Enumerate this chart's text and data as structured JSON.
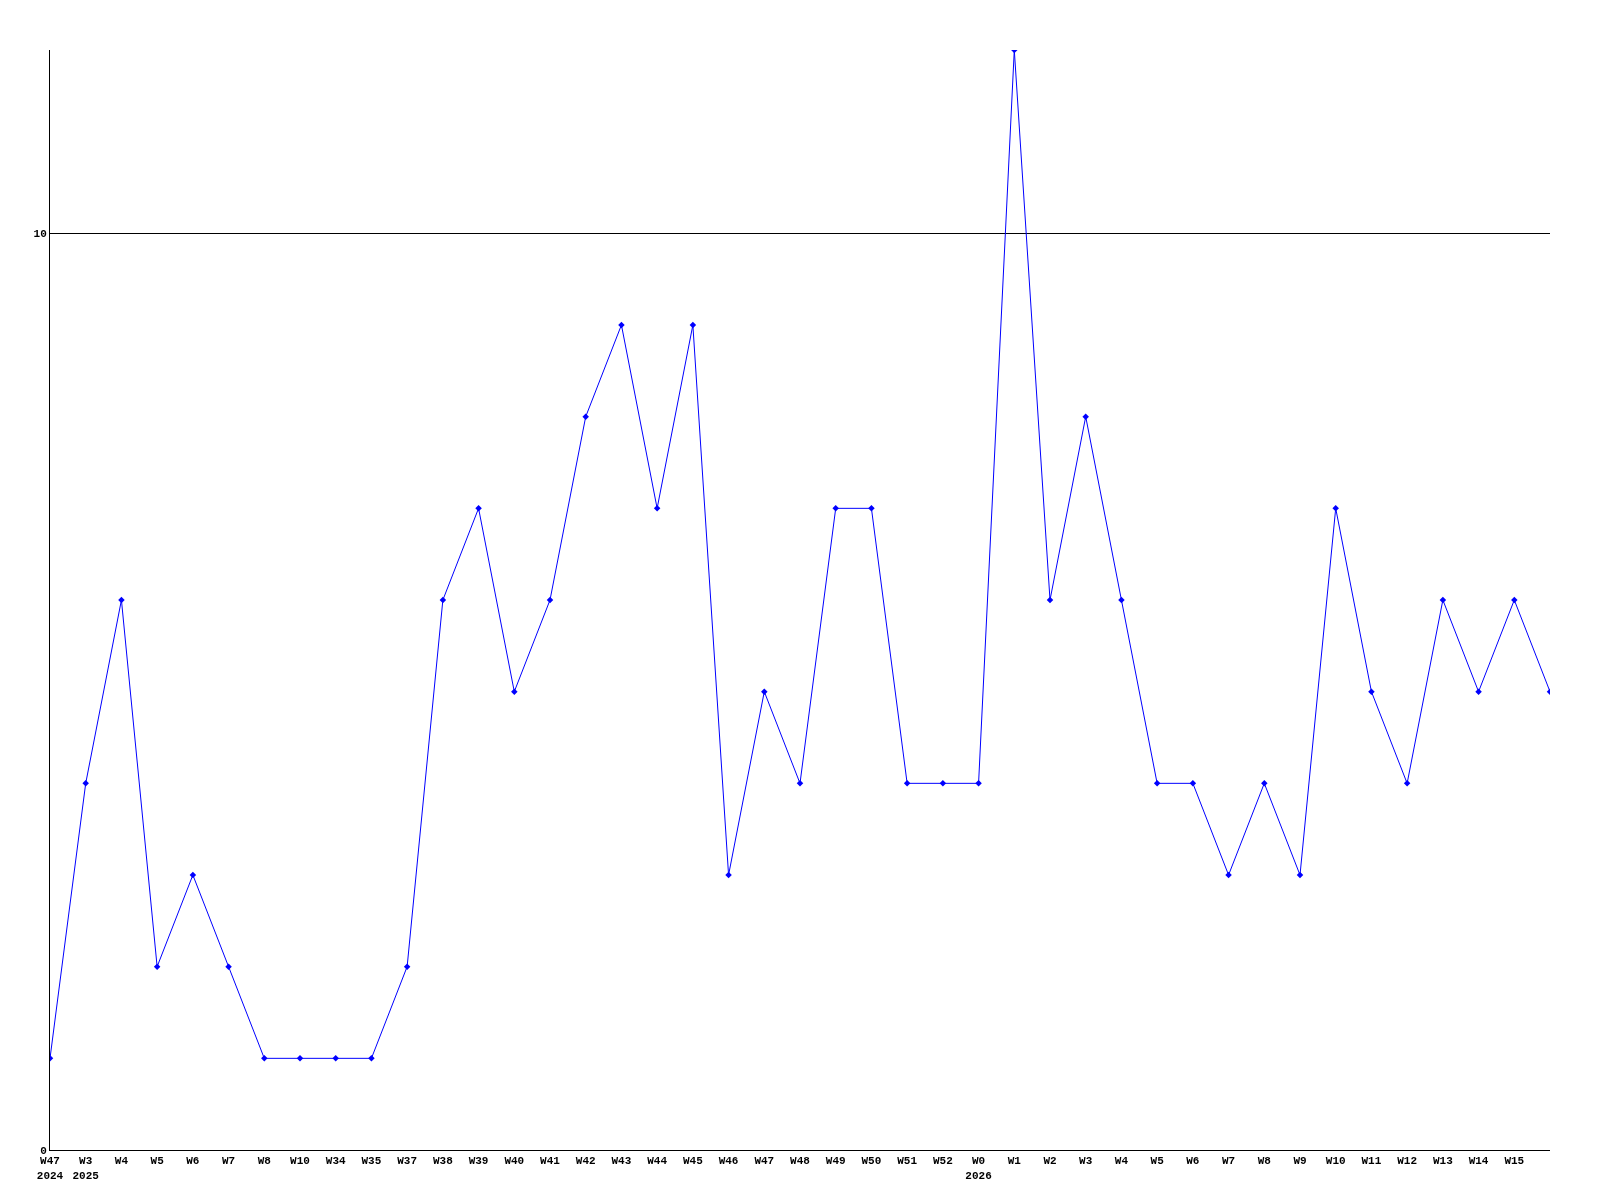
{
  "chart_data": {
    "type": "line",
    "categories": [
      "W47\n2024",
      "W3\n2025",
      "W4",
      "W5",
      "W6",
      "W7",
      "W8",
      "W10",
      "W34",
      "W35",
      "W37",
      "W38",
      "W39",
      "W40",
      "W41",
      "W42",
      "W43",
      "W44",
      "W45",
      "W46",
      "W47",
      "W48",
      "W49",
      "W50",
      "W51",
      "W52",
      "W0\n2026",
      "W1",
      "W2",
      "W3",
      "W4",
      "W5",
      "W6",
      "W7",
      "W8",
      "W9",
      "W10",
      "W11",
      "W12",
      "W13",
      "W14",
      "W15",
      null
    ],
    "series": [
      {
        "color": "#0000ff",
        "values": [
          1,
          4,
          6,
          2,
          3,
          2,
          1,
          1,
          1,
          1,
          2,
          6,
          7,
          5,
          6,
          8,
          9,
          7,
          9,
          3,
          5,
          4,
          7,
          7,
          4,
          4,
          4,
          12,
          6,
          8,
          6,
          4,
          4,
          3,
          4,
          3,
          7,
          5,
          4,
          6,
          5,
          6,
          5
        ]
      }
    ],
    "ylim": [
      0,
      12
    ],
    "yticks": [
      0,
      10
    ],
    "grid": "y",
    "marker": "diamond",
    "line_style": "solid",
    "legend": false
  }
}
